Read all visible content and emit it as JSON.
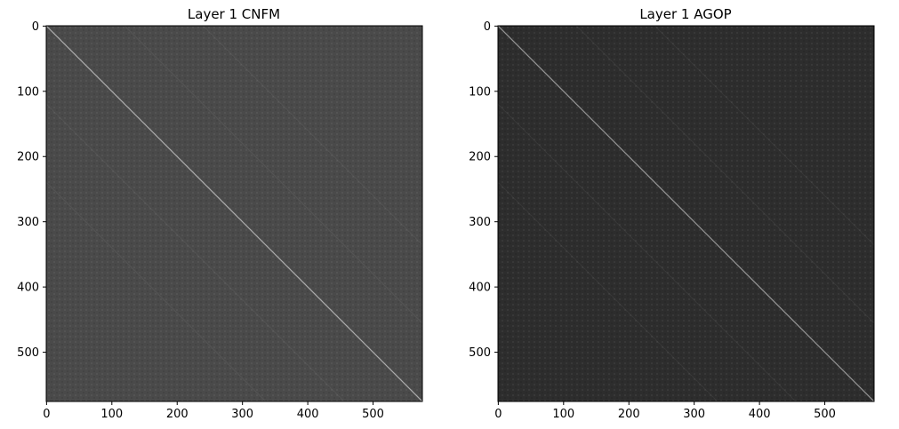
{
  "chart_data": [
    {
      "type": "heatmap",
      "title": "Layer 1 CNFM",
      "colormap": "gray",
      "background_color": "#4a4a4a",
      "diagonal_color": "#bdbdbd",
      "matrix_size": 576,
      "x_ticks": [
        0,
        100,
        200,
        300,
        400,
        500
      ],
      "y_ticks": [
        0,
        100,
        200,
        300,
        400,
        500
      ],
      "xlim": [
        0,
        576
      ],
      "ylim": [
        576,
        0
      ],
      "grid": false
    },
    {
      "type": "heatmap",
      "title": "Layer 1 AGOP",
      "colormap": "gray",
      "background_color": "#2d2d2d",
      "diagonal_color": "#a8a8a8",
      "matrix_size": 576,
      "x_ticks": [
        0,
        100,
        200,
        300,
        400,
        500
      ],
      "y_ticks": [
        0,
        100,
        200,
        300,
        400,
        500
      ],
      "xlim": [
        0,
        576
      ],
      "ylim": [
        576,
        0
      ],
      "grid": false
    }
  ]
}
